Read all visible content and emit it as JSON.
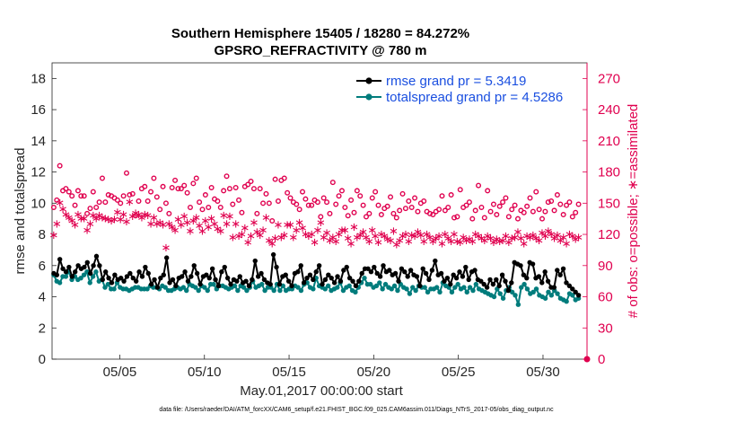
{
  "chart_data": {
    "type": "line",
    "title_line1": "Southern Hemisphere 15405 / 18280 = 84.272%",
    "title_line2": "GPSRO_REFRACTIVITY @ 780 m",
    "xlabel": "May.01,2017 00:00:00 start",
    "ylabel_left": "rmse and totalspread",
    "ylabel_right": "# of obs: o=possible; ∗=assimilated",
    "xlim": [
      1,
      32.6
    ],
    "ylim_left": [
      0,
      19
    ],
    "ylim_right": [
      0,
      285
    ],
    "x_tick_values": [
      5,
      10,
      15,
      20,
      25,
      30
    ],
    "x_tick_labels": [
      "05/05",
      "05/10",
      "05/15",
      "05/20",
      "05/25",
      "05/30"
    ],
    "y_left_ticks": [
      0,
      2,
      4,
      6,
      8,
      10,
      12,
      14,
      16,
      18
    ],
    "y_right_ticks": [
      0,
      30,
      60,
      90,
      120,
      150,
      180,
      210,
      240,
      270
    ],
    "series": [
      {
        "name": "rmse",
        "legend": "rmse grand pr = 5.3419",
        "color": "#000000",
        "axis": "left",
        "values": [
          5.5,
          5.4,
          6.4,
          5.8,
          5.6,
          5.9,
          5.3,
          5.6,
          6.0,
          5.8,
          5.9,
          6.2,
          5.5,
          6.0,
          6.6,
          6.0,
          5.1,
          5.6,
          5.2,
          4.9,
          5.4,
          5.1,
          5.2,
          5.0,
          5.3,
          5.5,
          5.2,
          5.0,
          5.6,
          5.3,
          5.9,
          5.5,
          4.8,
          5.1,
          4.6,
          5.2,
          5.4,
          6.5,
          4.9,
          5.1,
          4.7,
          5.2,
          5.3,
          5.6,
          5.0,
          5.3,
          6.0,
          5.5,
          4.8,
          5.3,
          5.4,
          5.2,
          5.8,
          5.1,
          4.7,
          5.6,
          5.9,
          5.2,
          4.8,
          5.1,
          5.0,
          5.3,
          4.9,
          5.0,
          4.7,
          5.1,
          6.3,
          5.3,
          5.5,
          5.1,
          4.9,
          4.8,
          6.7,
          5.9,
          4.8,
          5.3,
          5.4,
          5.0,
          4.7,
          5.5,
          5.6,
          6.0,
          4.9,
          5.2,
          5.4,
          5.1,
          5.6,
          6.0,
          4.8,
          5.1,
          5.4,
          5.2,
          4.9,
          5.3,
          5.0,
          5.7,
          5.9,
          5.2,
          5.0,
          4.7,
          5.0,
          5.5,
          5.8,
          5.8,
          5.6,
          5.9,
          5.5,
          5.3,
          6.0,
          5.6,
          5.7,
          5.4,
          5.5,
          5.0,
          5.8,
          5.6,
          5.3,
          5.7,
          5.4,
          5.3,
          4.7,
          5.8,
          5.5,
          5.1,
          5.7,
          6.3,
          5.4,
          5.5,
          5.0,
          5.2,
          4.8,
          5.4,
          5.2,
          5.6,
          5.3,
          5.9,
          5.1,
          5.6,
          5.7,
          5.1,
          5.0,
          4.8,
          4.6,
          5.1,
          4.8,
          5.1,
          4.7,
          5.4,
          5.0,
          4.4,
          4.9,
          6.2,
          6.1,
          6.0,
          5.4,
          5.2,
          6.2,
          6.1,
          5.2,
          5.3,
          4.9,
          5.6,
          5.0,
          4.6,
          4.6,
          5.7,
          5.4,
          5.8,
          4.9,
          4.7,
          4.5,
          4.3,
          4.1
        ]
      },
      {
        "name": "totalspread",
        "legend": "totalspread grand pr = 4.5286",
        "color": "#007c7c",
        "axis": "left",
        "values": [
          5.4,
          5.0,
          4.9,
          5.3,
          5.3,
          5.6,
          5.1,
          5.3,
          5.1,
          5.2,
          5.4,
          5.6,
          4.9,
          5.3,
          5.6,
          5.0,
          5.1,
          4.6,
          4.8,
          4.5,
          4.5,
          4.9,
          4.6,
          4.5,
          4.5,
          4.4,
          4.5,
          4.6,
          4.6,
          4.5,
          4.5,
          4.5,
          4.7,
          4.6,
          4.6,
          4.5,
          4.7,
          4.6,
          4.4,
          4.4,
          4.5,
          4.6,
          4.5,
          4.6,
          4.4,
          4.8,
          4.7,
          4.6,
          4.4,
          4.7,
          4.6,
          4.4,
          4.8,
          4.8,
          4.5,
          4.7,
          4.7,
          4.6,
          4.5,
          4.6,
          4.7,
          4.4,
          4.7,
          4.6,
          4.4,
          4.6,
          5.0,
          4.6,
          4.7,
          4.8,
          4.4,
          4.6,
          4.6,
          4.4,
          4.8,
          4.4,
          4.7,
          4.4,
          4.5,
          4.5,
          4.7,
          4.6,
          4.4,
          4.8,
          4.9,
          4.6,
          4.5,
          5.2,
          4.7,
          4.6,
          4.5,
          4.7,
          4.4,
          4.5,
          4.6,
          4.9,
          4.4,
          4.6,
          4.7,
          4.4,
          4.3,
          4.6,
          4.9,
          5.2,
          4.8,
          4.8,
          4.6,
          4.7,
          4.9,
          4.5,
          4.8,
          4.6,
          4.5,
          4.7,
          4.4,
          4.8,
          4.6,
          4.5,
          4.2,
          4.6,
          4.4,
          4.7,
          4.6,
          4.6,
          4.3,
          4.5,
          4.5,
          4.6,
          4.3,
          4.9,
          4.7,
          4.6,
          4.3,
          4.6,
          4.8,
          4.5,
          4.6,
          4.3,
          4.6,
          4.4,
          4.8,
          4.5,
          4.4,
          4.3,
          4.2,
          4.1,
          4.0,
          4.5,
          4.2,
          3.9,
          4.4,
          4.6,
          4.3,
          4.1,
          3.5,
          4.6,
          4.8,
          4.5,
          4.2,
          4.3,
          4.5,
          4.1,
          4.0,
          3.9,
          4.3,
          4.1,
          4.4,
          4.2,
          3.9,
          3.8,
          3.7,
          4.2,
          4.1,
          3.8,
          3.9
        ]
      },
      {
        "name": "possible",
        "marker": "o",
        "color": "#e0004f",
        "axis": "right",
        "values": [
          146,
          153,
          186,
          162,
          164,
          161,
          157,
          148,
          162,
          157,
          157,
          140,
          145,
          161,
          146,
          151,
          174,
          151,
          158,
          157,
          155,
          153,
          150,
          157,
          179,
          158,
          159,
          138,
          152,
          164,
          166,
          152,
          161,
          174,
          156,
          144,
          166,
          150,
          140,
          165,
          172,
          164,
          164,
          167,
          160,
          146,
          169,
          174,
          151,
          144,
          158,
          146,
          165,
          154,
          152,
          146,
          162,
          176,
          164,
          149,
          165,
          153,
          141,
          166,
          168,
          171,
          164,
          140,
          164,
          150,
          159,
          150,
          133,
          173,
          152,
          172,
          174,
          160,
          155,
          151,
          149,
          144,
          161,
          154,
          148,
          148,
          153,
          151,
          137,
          155,
          151,
          140,
          170,
          149,
          157,
          162,
          146,
          138,
          153,
          141,
          162,
          157,
          148,
          137,
          140,
          155,
          161,
          148,
          139,
          145,
          147,
          156,
          140,
          136,
          143,
          159,
          145,
          152,
          146,
          155,
          142,
          150,
          152,
          142,
          140,
          139,
          142,
          144,
          157,
          143,
          146,
          158,
          136,
          137,
          163,
          146,
          148,
          151,
          135,
          143,
          167,
          146,
          136,
          162,
          142,
          149,
          139,
          147,
          151,
          155,
          137,
          144,
          148,
          135,
          143,
          141,
          147,
          155,
          142,
          161,
          144,
          135,
          142,
          151,
          152,
          143,
          158,
          149,
          139,
          148,
          151,
          137,
          141,
          149
        ]
      },
      {
        "name": "assimilated",
        "marker": "*",
        "color": "#e0004f",
        "axis": "right",
        "values": [
          120,
          131,
          151,
          145,
          140,
          137,
          134,
          130,
          140,
          136,
          136,
          125,
          131,
          139,
          136,
          139,
          137,
          136,
          135,
          134,
          135,
          142,
          135,
          140,
          133,
          152,
          138,
          141,
          140,
          137,
          140,
          139,
          131,
          137,
          131,
          132,
          130,
          108,
          131,
          128,
          125,
          135,
          130,
          138,
          132,
          124,
          134,
          137,
          129,
          124,
          134,
          128,
          136,
          131,
          126,
          124,
          139,
          131,
          138,
          118,
          131,
          119,
          121,
          127,
          113,
          119,
          132,
          123,
          120,
          125,
          137,
          115,
          112,
          117,
          130,
          118,
          120,
          130,
          130,
          118,
          125,
          132,
          127,
          121,
          119,
          121,
          113,
          125,
          132,
          118,
          122,
          115,
          118,
          114,
          121,
          125,
          125,
          117,
          112,
          128,
          118,
          120,
          123,
          118,
          114,
          125,
          119,
          113,
          121,
          119,
          116,
          115,
          124,
          111,
          115,
          119,
          121,
          114,
          120,
          119,
          123,
          120,
          114,
          121,
          118,
          114,
          117,
          119,
          112,
          121,
          117,
          114,
          121,
          114,
          113,
          118,
          115,
          116,
          114,
          121,
          119,
          117,
          115,
          119,
          117,
          113,
          116,
          114,
          115,
          119,
          113,
          117,
          118,
          123,
          117,
          112,
          119,
          118,
          120,
          117,
          115,
          122,
          119,
          124,
          121,
          117,
          120,
          115,
          118,
          112,
          121,
          119,
          116,
          118
        ]
      }
    ],
    "final_possible_value": 0,
    "colors": {
      "rmse": "#000000",
      "totalspread": "#007c7c",
      "obs": "#e0004f",
      "legend_text": "#1a4fe0"
    }
  },
  "footer": {
    "data_file": "data file: /Users/raeder/DAI/ATM_forcXX/CAM6_setup/f.e21.FHIST_BGC.f09_025.CAM6assim.011/Diags_NTrS_2017-05/obs_diag_output.nc"
  }
}
